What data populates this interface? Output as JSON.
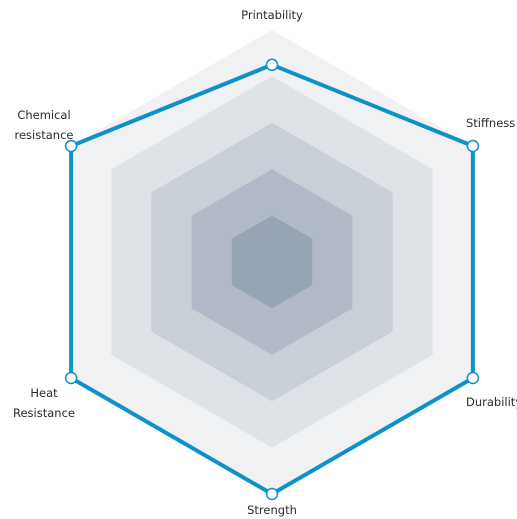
{
  "chart_data": {
    "type": "radar",
    "title": "",
    "axes": [
      {
        "label": [
          "Printability"
        ],
        "value": 0.85
      },
      {
        "label": [
          "Stiffness"
        ],
        "value": 1.0
      },
      {
        "label": [
          "Durability"
        ],
        "value": 1.0
      },
      {
        "label": [
          "Strength"
        ],
        "value": 1.0
      },
      {
        "label": [
          "Heat",
          "Resistance"
        ],
        "value": 1.0
      },
      {
        "label": [
          "Chemical",
          "resistance"
        ],
        "value": 1.0
      }
    ],
    "range": [
      0,
      1
    ],
    "rings": 5,
    "ring_colors": [
      "#f0f1f3",
      "#dfe2e7",
      "#c9cfd7",
      "#b1bac6",
      "#97a4b3"
    ],
    "series_color": "#0e91c8",
    "marker_fill": "#ffffff",
    "grid": false,
    "legend": "none"
  }
}
